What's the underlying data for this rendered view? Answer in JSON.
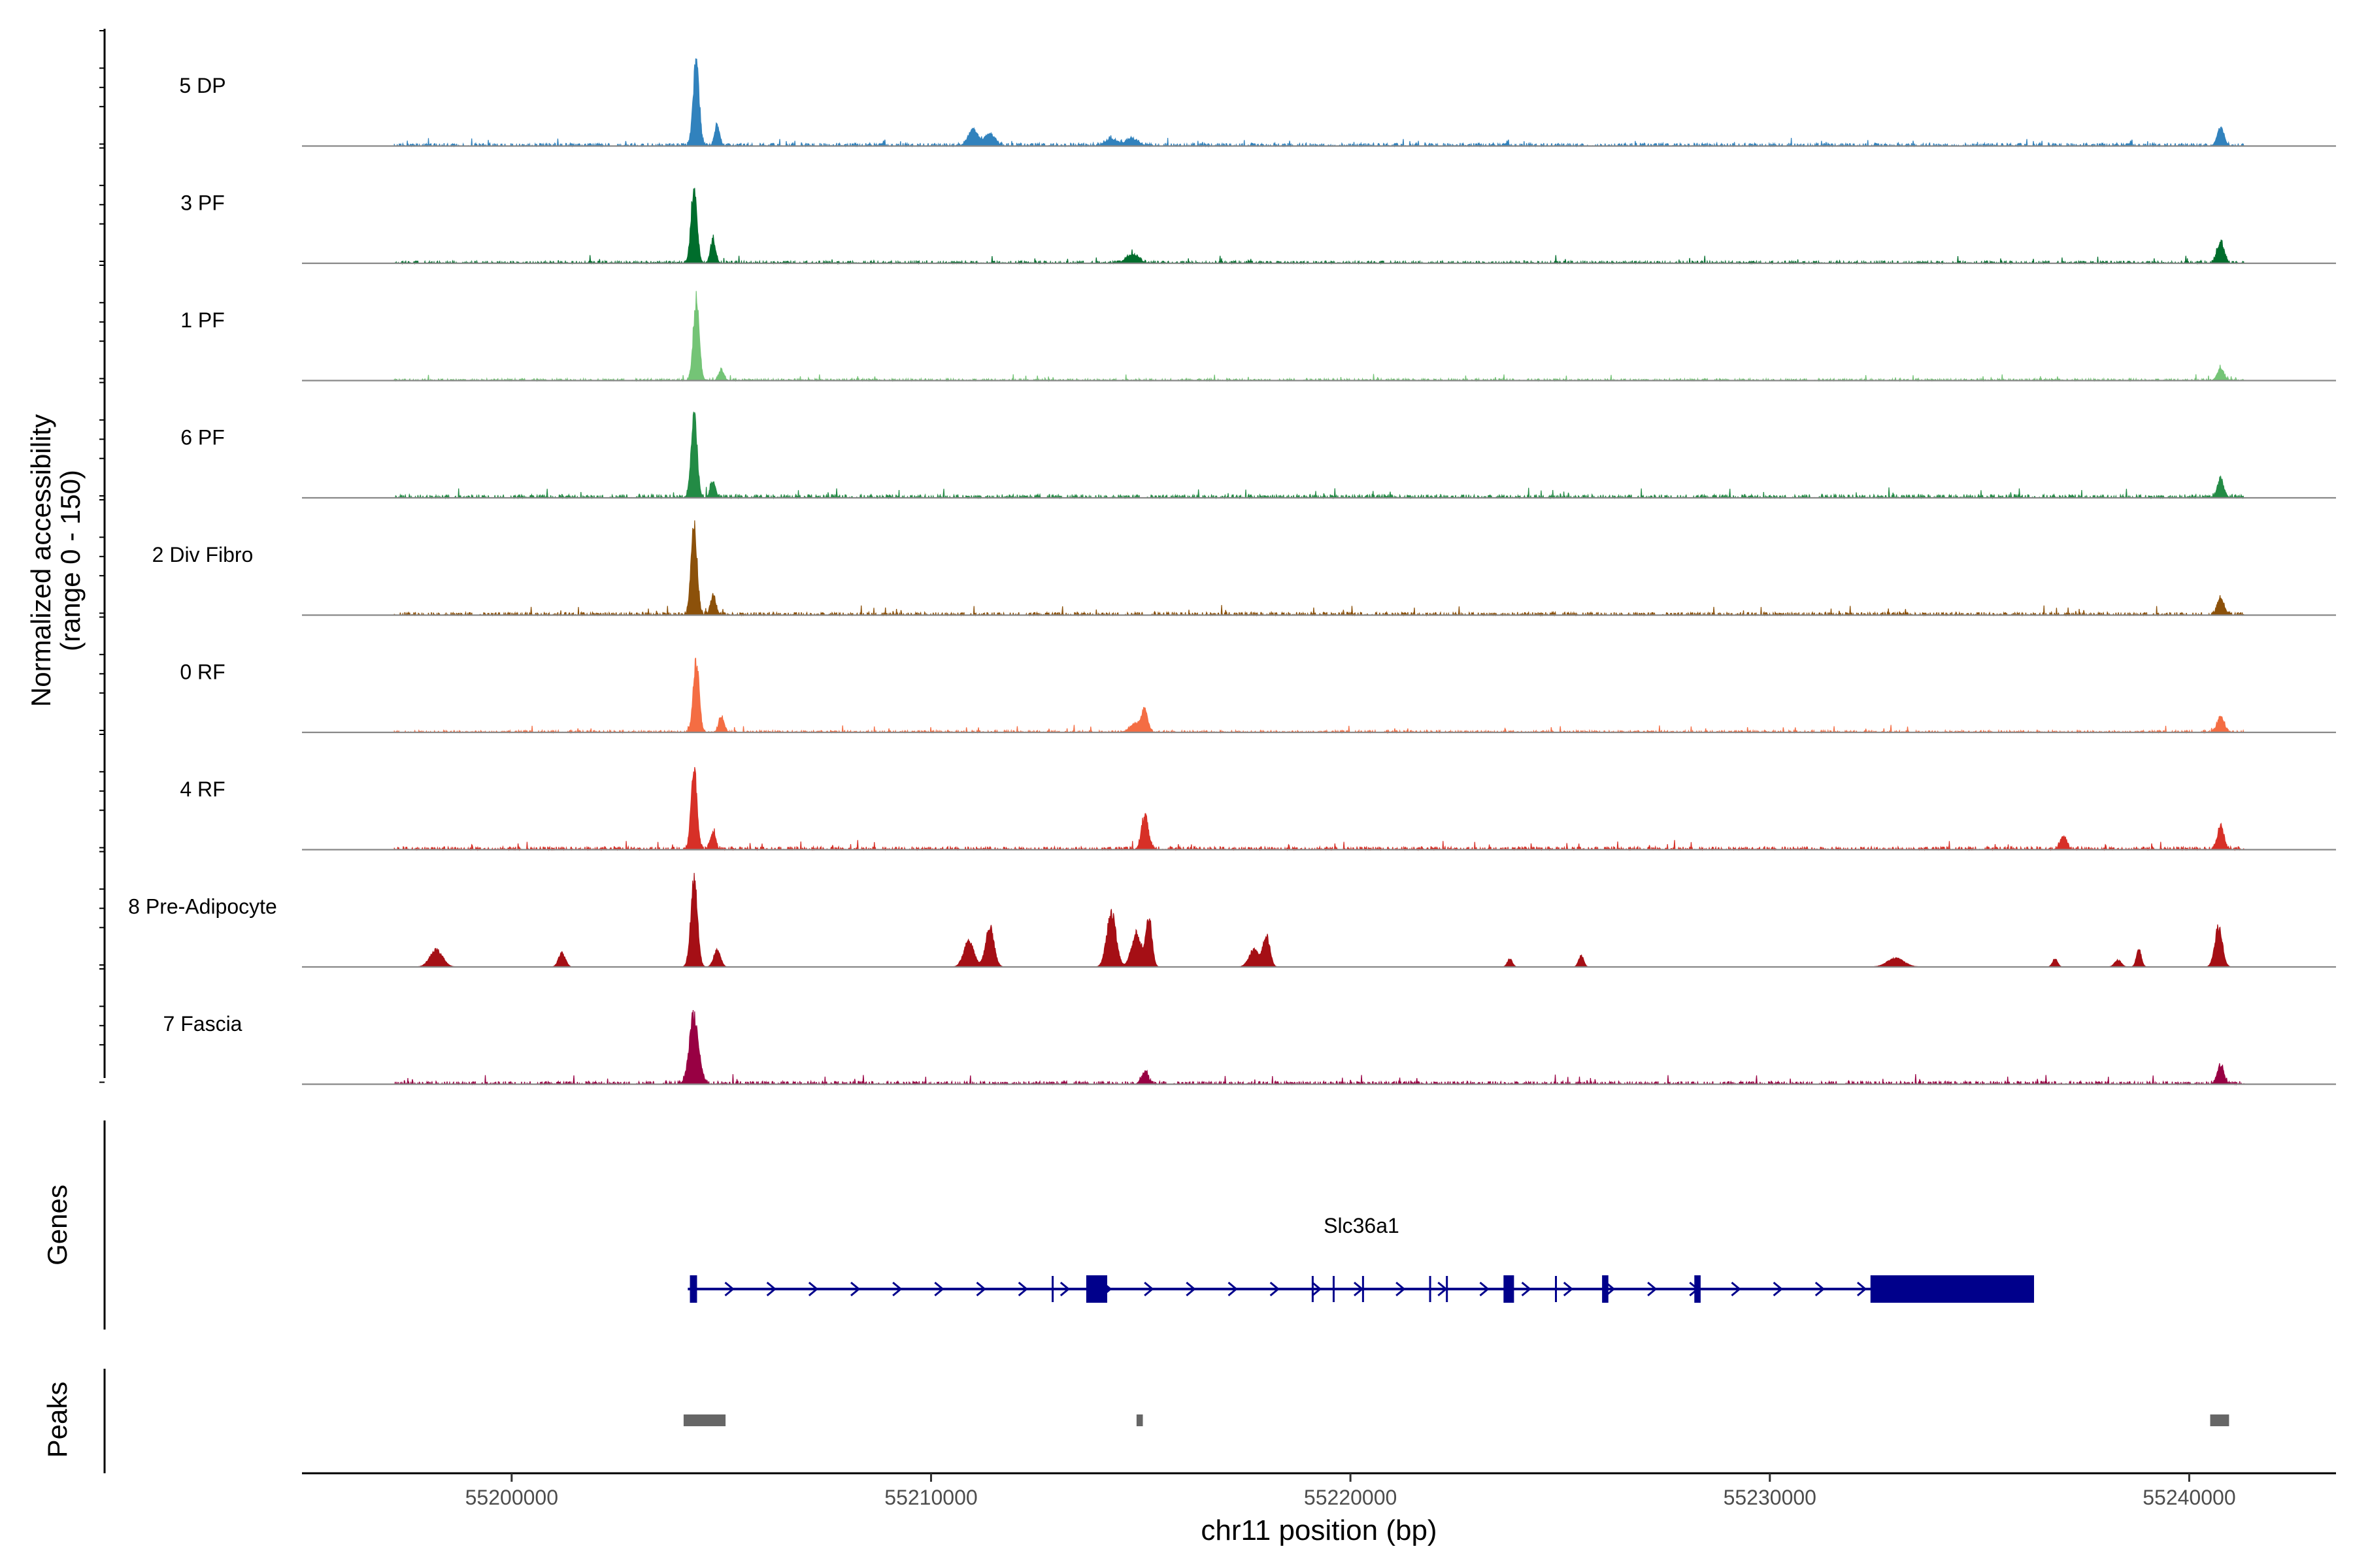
{
  "chart_data": {
    "type": "area",
    "title": "",
    "chromosome": "chr11",
    "xlabel": "chr11 position (bp)",
    "ylabel_line1": "Normalized accessibility",
    "ylabel_line2": "(range 0 - 150)",
    "ylim": [
      0,
      150
    ],
    "xlim": [
      55195000,
      55243500
    ],
    "x_ticks": [
      55200000,
      55210000,
      55220000,
      55230000,
      55240000
    ],
    "x_tick_labels": [
      "55200000",
      "55210000",
      "55220000",
      "55230000",
      "55240000"
    ],
    "tracks": [
      {
        "name": "5 DP",
        "color": "#3182bd",
        "baseline": 8,
        "noise_level": 5,
        "peaks": [
          [
            55204400,
            150,
            70
          ],
          [
            55204900,
            38,
            60
          ],
          [
            55211000,
            28,
            120
          ],
          [
            55211400,
            22,
            120
          ],
          [
            55214300,
            12,
            150
          ],
          [
            55214800,
            12,
            150
          ],
          [
            55240750,
            32,
            80
          ]
        ]
      },
      {
        "name": "3 PF",
        "color": "#006d2c",
        "baseline": 6,
        "noise_level": 5,
        "peaks": [
          [
            55204350,
            135,
            70
          ],
          [
            55204800,
            42,
            60
          ],
          [
            55214800,
            14,
            150
          ],
          [
            55240750,
            38,
            80
          ]
        ]
      },
      {
        "name": "1 PF",
        "color": "#74c476",
        "baseline": 5,
        "noise_level": 4,
        "peaks": [
          [
            55204400,
            140,
            70
          ],
          [
            55205000,
            20,
            60
          ],
          [
            55240750,
            20,
            80
          ]
        ]
      },
      {
        "name": "6 PF",
        "color": "#238b45",
        "baseline": 9,
        "noise_level": 6,
        "peaks": [
          [
            55204350,
            145,
            70
          ],
          [
            55204800,
            28,
            60
          ],
          [
            55240750,
            30,
            80
          ]
        ]
      },
      {
        "name": "2 Div Fibro",
        "color": "#8c510a",
        "baseline": 8,
        "noise_level": 6,
        "peaks": [
          [
            55204350,
            160,
            70
          ],
          [
            55204800,
            35,
            60
          ],
          [
            55240750,
            30,
            80
          ]
        ]
      },
      {
        "name": "0 RF",
        "color": "#f46d43",
        "baseline": 5,
        "noise_level": 5,
        "peaks": [
          [
            55204400,
            125,
            70
          ],
          [
            55205000,
            30,
            60
          ],
          [
            55214900,
            15,
            150
          ],
          [
            55215100,
            35,
            70
          ],
          [
            55240750,
            28,
            80
          ]
        ]
      },
      {
        "name": "4 RF",
        "color": "#d73027",
        "baseline": 8,
        "noise_level": 6,
        "peaks": [
          [
            55204350,
            140,
            70
          ],
          [
            55204800,
            30,
            60
          ],
          [
            55215100,
            60,
            80
          ],
          [
            55237000,
            22,
            80
          ],
          [
            55240750,
            40,
            80
          ]
        ]
      },
      {
        "name": "8 Pre-Adipocyte",
        "color": "#a50f15",
        "baseline": 0,
        "noise_level": 0,
        "peaks": [
          [
            55198200,
            30,
            150
          ],
          [
            55201200,
            25,
            80
          ],
          [
            55204350,
            150,
            80
          ],
          [
            55204900,
            30,
            80
          ],
          [
            55210900,
            45,
            120
          ],
          [
            55211400,
            70,
            100
          ],
          [
            55214300,
            95,
            110
          ],
          [
            55214900,
            60,
            120
          ],
          [
            55215200,
            85,
            70
          ],
          [
            55217700,
            30,
            120
          ],
          [
            55218000,
            55,
            80
          ],
          [
            55223800,
            14,
            60
          ],
          [
            55225500,
            20,
            60
          ],
          [
            55233000,
            15,
            200
          ],
          [
            55236800,
            14,
            60
          ],
          [
            55238300,
            12,
            80
          ],
          [
            55238800,
            30,
            60
          ],
          [
            55240700,
            70,
            90
          ]
        ]
      },
      {
        "name": "7 Fascia",
        "color": "#980043",
        "baseline": 8,
        "noise_level": 6,
        "peaks": [
          [
            55204350,
            120,
            110
          ],
          [
            55215100,
            22,
            80
          ],
          [
            55240750,
            32,
            80
          ]
        ]
      }
    ],
    "genes": [
      {
        "name": "Slc36a1",
        "strand": "+",
        "start": 55204200,
        "end": 55236300,
        "exons": [
          [
            55204250,
            55204420
          ],
          [
            55213700,
            55214200
          ],
          [
            55223650,
            55223900
          ],
          [
            55226000,
            55226150
          ],
          [
            55228200,
            55228350
          ],
          [
            55232400,
            55236300
          ]
        ]
      }
    ],
    "peaks_track": [
      [
        55204100,
        55205100
      ],
      [
        55214900,
        55215050
      ],
      [
        55240500,
        55240950
      ]
    ],
    "panel_labels": {
      "genes": "Genes",
      "peaks": "Peaks"
    }
  }
}
